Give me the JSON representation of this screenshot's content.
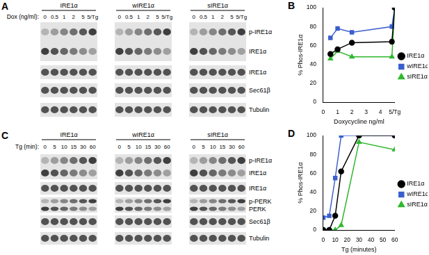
{
  "blots": [
    {
      "panel": "A",
      "groups": [
        "IRE1α",
        "wIRE1α",
        "sIRE1α"
      ],
      "lane_title": "Dox (ng/ml):",
      "lanes": [
        "0",
        "0.5",
        "1",
        "2",
        "5",
        "5/Tg"
      ],
      "rows": [
        [
          "p-IRE1α",
          "IRE1α"
        ],
        [
          "IRE1α"
        ],
        [
          "Sec61β"
        ],
        [
          "Tubulin"
        ]
      ]
    },
    {
      "panel": "C",
      "groups": [
        "IRE1α",
        "wIRE1α",
        "sIRE1α"
      ],
      "lane_title": "Tg (min):",
      "lanes": [
        "0",
        "5",
        "10",
        "15",
        "30",
        "60"
      ],
      "rows": [
        [
          "p-IRE1α",
          "IRE1α"
        ],
        [
          "IRE1α"
        ],
        [
          "p-PERK",
          "PERK"
        ],
        [
          "Sec61β"
        ],
        [
          "Tubulin"
        ]
      ]
    }
  ],
  "chart_data": [
    {
      "panel": "B",
      "type": "line",
      "x_label": "Doxycycline ng/ml",
      "y_label": "% Phos-IRE1α",
      "x": [
        0.5,
        1,
        2,
        4.8,
        5
      ],
      "series": [
        {
          "name": "IRE1α",
          "color": "#000000",
          "marker": "circle",
          "values": [
            51,
            56,
            63,
            64,
            100
          ]
        },
        {
          "name": "wIRE1α",
          "color": "#3a5fcd",
          "marker": "square",
          "values": [
            68,
            78,
            74,
            80,
            100
          ]
        },
        {
          "name": "sIRE1α",
          "color": "#2eb82e",
          "marker": "triangle",
          "values": [
            46,
            54,
            48,
            48,
            100
          ]
        }
      ],
      "xlim": [
        0,
        5
      ],
      "xticks": [
        0,
        1,
        2,
        3,
        4,
        {
          "value": 5,
          "label": "5/Tg"
        }
      ],
      "ylim": [
        0,
        100
      ],
      "yticks": [
        0,
        20,
        40,
        60,
        80,
        100
      ],
      "grid": false,
      "legend": "right"
    },
    {
      "panel": "D",
      "type": "line",
      "x_label": "Tg (minutes)",
      "y_label": "% Phos-IRE1α",
      "x": [
        0,
        5,
        10,
        15,
        30,
        60
      ],
      "series": [
        {
          "name": "IRE1α",
          "color": "#000000",
          "marker": "circle",
          "values": [
            0,
            0,
            15,
            62,
            100,
            100
          ]
        },
        {
          "name": "wIRE1α",
          "color": "#3a5fcd",
          "marker": "square",
          "values": [
            13,
            15,
            55,
            100,
            100,
            100
          ]
        },
        {
          "name": "sIRE1α",
          "color": "#2eb82e",
          "marker": "triangle",
          "values": [
            0,
            0,
            0,
            5,
            93,
            85
          ]
        }
      ],
      "xlim": [
        0,
        60
      ],
      "xticks": [
        0,
        10,
        20,
        30,
        40,
        50,
        60
      ],
      "ylim": [
        0,
        100
      ],
      "yticks": [
        0,
        20,
        40,
        60,
        80,
        100
      ],
      "grid": false,
      "legend": "right"
    }
  ]
}
